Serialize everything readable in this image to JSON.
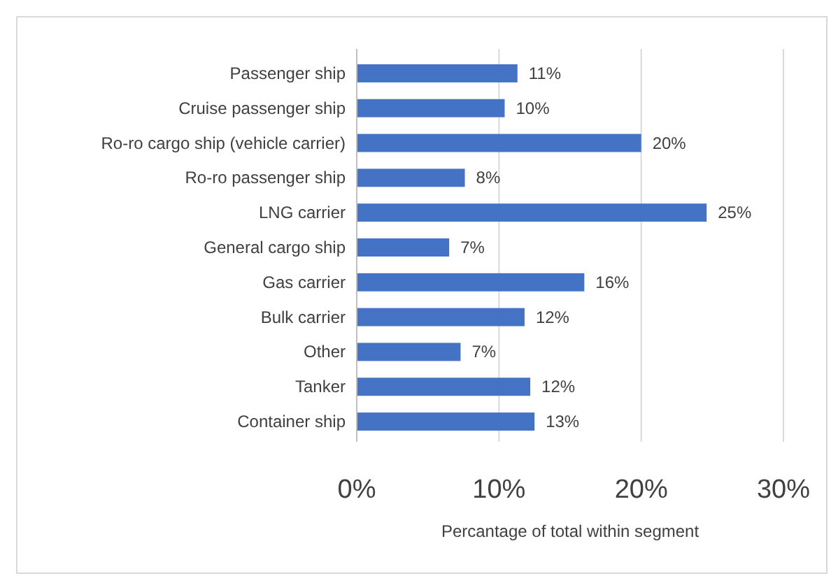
{
  "chart_data": {
    "type": "bar",
    "orientation": "horizontal",
    "xlabel": "Percantage of total within segment",
    "categories": [
      "Passenger ship",
      "Cruise passenger ship",
      "Ro-ro cargo ship (vehicle carrier)",
      "Ro-ro passenger ship",
      "LNG carrier",
      "General cargo ship",
      "Gas carrier",
      "Bulk carrier",
      "Other",
      "Tanker",
      "Container ship"
    ],
    "values": [
      11.3,
      10.4,
      20.0,
      7.6,
      24.6,
      6.5,
      16.0,
      11.8,
      7.3,
      12.2,
      12.5
    ],
    "value_labels": [
      "11%",
      "10%",
      "20%",
      "8%",
      "25%",
      "7%",
      "16%",
      "12%",
      "7%",
      "12%",
      "13%"
    ],
    "color": "#4472c4",
    "xlim": [
      0,
      30
    ],
    "xticks": [
      {
        "value": 0,
        "label": "0%"
      },
      {
        "value": 10,
        "label": "10%"
      },
      {
        "value": 20,
        "label": "20%"
      },
      {
        "value": 30,
        "label": "30%"
      }
    ],
    "grid": "x"
  }
}
